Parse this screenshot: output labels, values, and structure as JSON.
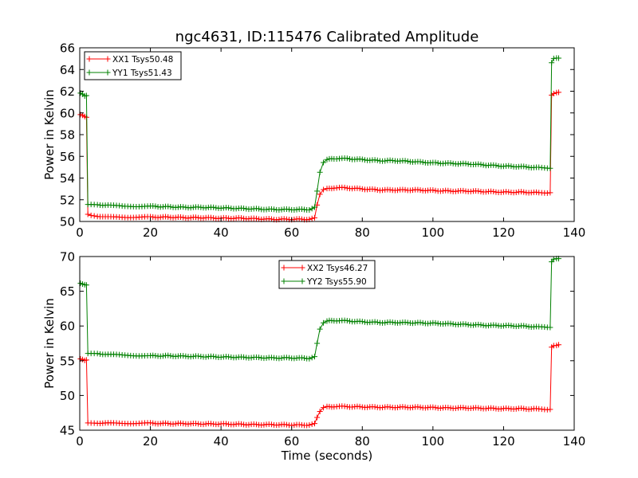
{
  "chart_data": [
    {
      "type": "line",
      "title": "ngc4631, ID:115476 Calibrated Amplitude",
      "xlabel": "",
      "ylabel": "Power in Kelvin",
      "xlim": [
        0,
        140
      ],
      "ylim": [
        50,
        66
      ],
      "xticks": [
        "0",
        "20",
        "40",
        "60",
        "80",
        "100",
        "120",
        "140"
      ],
      "yticks": [
        "50",
        "52",
        "54",
        "56",
        "58",
        "60",
        "62",
        "64",
        "66"
      ],
      "legend_position": "top-left",
      "grid": false,
      "marker": "+",
      "series": [
        {
          "name": "XX1 Tsys50.48",
          "color": "#ff0000",
          "points": [
            [
              0.2,
              59.8
            ],
            [
              0.8,
              59.8
            ],
            [
              1.4,
              59.7
            ],
            [
              1.9,
              59.6
            ],
            [
              2.3,
              50.7
            ],
            [
              3.2,
              50.6
            ],
            [
              5,
              50.5
            ],
            [
              8,
              50.4
            ],
            [
              12,
              50.4
            ],
            [
              16,
              50.4
            ],
            [
              20,
              50.4
            ],
            [
              25,
              50.4
            ],
            [
              30,
              50.35
            ],
            [
              35,
              50.35
            ],
            [
              40,
              50.3
            ],
            [
              45,
              50.3
            ],
            [
              50,
              50.25
            ],
            [
              55,
              50.2
            ],
            [
              60,
              50.2
            ],
            [
              65,
              50.2
            ],
            [
              66.5,
              50.3
            ],
            [
              67.2,
              51.5
            ],
            [
              68,
              52.5
            ],
            [
              69,
              52.9
            ],
            [
              70,
              53.0
            ],
            [
              72,
              53.1
            ],
            [
              75,
              53.1
            ],
            [
              80,
              53.0
            ],
            [
              85,
              52.9
            ],
            [
              90,
              52.9
            ],
            [
              95,
              52.9
            ],
            [
              100,
              52.85
            ],
            [
              105,
              52.8
            ],
            [
              110,
              52.8
            ],
            [
              115,
              52.75
            ],
            [
              120,
              52.7
            ],
            [
              125,
              52.7
            ],
            [
              130,
              52.65
            ],
            [
              133.2,
              52.65
            ],
            [
              133.6,
              61.6
            ],
            [
              134.2,
              61.8
            ],
            [
              135,
              61.9
            ],
            [
              135.6,
              61.9
            ]
          ]
        },
        {
          "name": "YY1 Tsys51.43",
          "color": "#008000",
          "points": [
            [
              0.2,
              61.8
            ],
            [
              0.8,
              61.7
            ],
            [
              1.4,
              61.6
            ],
            [
              1.9,
              61.6
            ],
            [
              2.3,
              51.6
            ],
            [
              3.2,
              51.6
            ],
            [
              5,
              51.55
            ],
            [
              8,
              51.5
            ],
            [
              12,
              51.4
            ],
            [
              16,
              51.4
            ],
            [
              20,
              51.4
            ],
            [
              25,
              51.35
            ],
            [
              30,
              51.3
            ],
            [
              35,
              51.3
            ],
            [
              40,
              51.25
            ],
            [
              45,
              51.2
            ],
            [
              50,
              51.15
            ],
            [
              55,
              51.1
            ],
            [
              60,
              51.1
            ],
            [
              65,
              51.1
            ],
            [
              66.5,
              51.3
            ],
            [
              67.2,
              52.8
            ],
            [
              68,
              54.5
            ],
            [
              69,
              55.4
            ],
            [
              70,
              55.7
            ],
            [
              72,
              55.8
            ],
            [
              75,
              55.8
            ],
            [
              80,
              55.7
            ],
            [
              85,
              55.6
            ],
            [
              90,
              55.6
            ],
            [
              95,
              55.5
            ],
            [
              100,
              55.4
            ],
            [
              105,
              55.35
            ],
            [
              110,
              55.3
            ],
            [
              115,
              55.2
            ],
            [
              120,
              55.1
            ],
            [
              125,
              55.05
            ],
            [
              130,
              54.95
            ],
            [
              133.2,
              54.9
            ],
            [
              133.6,
              64.6
            ],
            [
              134.2,
              65.0
            ],
            [
              135,
              65.05
            ],
            [
              135.6,
              65.05
            ]
          ]
        }
      ]
    },
    {
      "type": "line",
      "title": "",
      "xlabel": "Time (seconds)",
      "ylabel": "Power in Kelvin",
      "xlim": [
        0,
        140
      ],
      "ylim": [
        45,
        70
      ],
      "xticks": [
        "0",
        "20",
        "40",
        "60",
        "80",
        "100",
        "120",
        "140"
      ],
      "yticks": [
        "45",
        "50",
        "55",
        "60",
        "65",
        "70"
      ],
      "legend_position": "upper-center",
      "grid": false,
      "marker": "+",
      "series": [
        {
          "name": "XX2 Tsys46.27",
          "color": "#ff0000",
          "points": [
            [
              0.2,
              55.2
            ],
            [
              0.8,
              55.2
            ],
            [
              1.4,
              55.1
            ],
            [
              1.9,
              55.1
            ],
            [
              2.3,
              46.1
            ],
            [
              3.2,
              46.1
            ],
            [
              5,
              46.05
            ],
            [
              8,
              46.0
            ],
            [
              12,
              46.0
            ],
            [
              16,
              46.0
            ],
            [
              20,
              46.0
            ],
            [
              25,
              45.95
            ],
            [
              30,
              45.95
            ],
            [
              35,
              45.9
            ],
            [
              40,
              45.9
            ],
            [
              45,
              45.85
            ],
            [
              50,
              45.8
            ],
            [
              55,
              45.8
            ],
            [
              60,
              45.75
            ],
            [
              65,
              45.75
            ],
            [
              66.5,
              45.9
            ],
            [
              67.2,
              46.8
            ],
            [
              68,
              47.7
            ],
            [
              69,
              48.2
            ],
            [
              70,
              48.35
            ],
            [
              72,
              48.4
            ],
            [
              75,
              48.4
            ],
            [
              80,
              48.35
            ],
            [
              85,
              48.3
            ],
            [
              90,
              48.3
            ],
            [
              95,
              48.3
            ],
            [
              100,
              48.25
            ],
            [
              105,
              48.2
            ],
            [
              110,
              48.2
            ],
            [
              115,
              48.15
            ],
            [
              120,
              48.1
            ],
            [
              125,
              48.1
            ],
            [
              130,
              48.05
            ],
            [
              133.2,
              48.0
            ],
            [
              133.6,
              56.9
            ],
            [
              134.2,
              57.2
            ],
            [
              135,
              57.25
            ],
            [
              135.6,
              57.3
            ]
          ]
        },
        {
          "name": "YY2 Tsys55.90",
          "color": "#008000",
          "points": [
            [
              0.2,
              66.1
            ],
            [
              0.8,
              66.0
            ],
            [
              1.4,
              66.0
            ],
            [
              1.9,
              65.9
            ],
            [
              2.3,
              56.1
            ],
            [
              3.2,
              56.1
            ],
            [
              5,
              56.05
            ],
            [
              8,
              55.9
            ],
            [
              12,
              55.8
            ],
            [
              16,
              55.75
            ],
            [
              20,
              55.7
            ],
            [
              25,
              55.7
            ],
            [
              30,
              55.65
            ],
            [
              35,
              55.6
            ],
            [
              40,
              55.55
            ],
            [
              45,
              55.5
            ],
            [
              50,
              55.45
            ],
            [
              55,
              55.4
            ],
            [
              60,
              55.4
            ],
            [
              65,
              55.35
            ],
            [
              66.5,
              55.6
            ],
            [
              67.2,
              57.5
            ],
            [
              68,
              59.5
            ],
            [
              69,
              60.4
            ],
            [
              70,
              60.7
            ],
            [
              72,
              60.8
            ],
            [
              75,
              60.75
            ],
            [
              80,
              60.6
            ],
            [
              85,
              60.5
            ],
            [
              90,
              60.5
            ],
            [
              95,
              60.45
            ],
            [
              100,
              60.4
            ],
            [
              105,
              60.3
            ],
            [
              110,
              60.2
            ],
            [
              115,
              60.1
            ],
            [
              120,
              60.05
            ],
            [
              125,
              60.0
            ],
            [
              130,
              59.85
            ],
            [
              133.2,
              59.8
            ],
            [
              133.6,
              69.2
            ],
            [
              134.2,
              69.6
            ],
            [
              135,
              69.7
            ],
            [
              135.6,
              69.7
            ]
          ]
        }
      ]
    }
  ]
}
